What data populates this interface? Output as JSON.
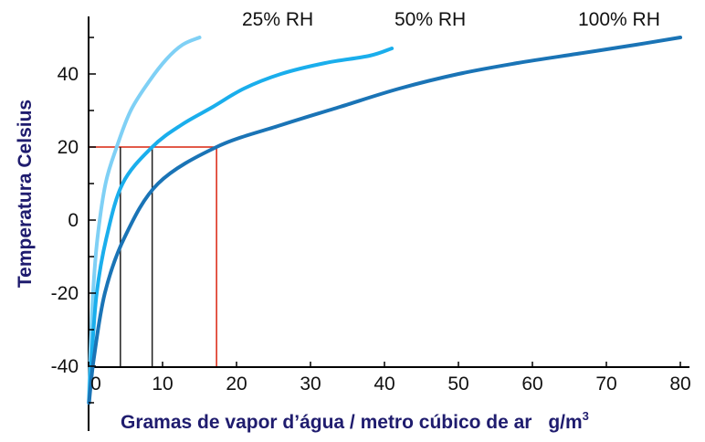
{
  "chart_data": {
    "type": "line",
    "xlabel": "Gramas de vapor d’água / metro cúbico de ar",
    "xunit": "g/m",
    "xunit_sup": "3",
    "ylabel": "Temperatura Celsius",
    "xlim": [
      0,
      80
    ],
    "ylim": [
      -40,
      50
    ],
    "x_ticks": [
      "0",
      "10",
      "20",
      "30",
      "40",
      "50",
      "60",
      "70",
      "80"
    ],
    "y_ticks": [
      "40",
      "20",
      "0",
      "-20",
      "-40"
    ],
    "grid": false,
    "series": [
      {
        "name": "25% RH",
        "color": "#7fd0f5",
        "points": [
          [
            0.03,
            -50
          ],
          [
            0.2,
            -38
          ],
          [
            0.6,
            -20
          ],
          [
            1.2,
            -5
          ],
          [
            2.3,
            10
          ],
          [
            3.8,
            20
          ],
          [
            5.7,
            30
          ],
          [
            8.2,
            38
          ],
          [
            10.5,
            44
          ],
          [
            12.7,
            48
          ],
          [
            15,
            50
          ]
        ]
      },
      {
        "name": "50% RH",
        "color": "#1aaeec",
        "points": [
          [
            0.05,
            -50
          ],
          [
            0.4,
            -38
          ],
          [
            1.1,
            -20
          ],
          [
            2.4,
            -5
          ],
          [
            4.6,
            10
          ],
          [
            8.6,
            20
          ],
          [
            12.5,
            26
          ],
          [
            16.8,
            31
          ],
          [
            21,
            36
          ],
          [
            26,
            40
          ],
          [
            32,
            43
          ],
          [
            38,
            45
          ],
          [
            41,
            47
          ]
        ]
      },
      {
        "name": "100% RH",
        "color": "#1a74b6",
        "points": [
          [
            0.06,
            -50
          ],
          [
            0.7,
            -38
          ],
          [
            2.2,
            -20
          ],
          [
            4.8,
            -5
          ],
          [
            9.4,
            10
          ],
          [
            17.3,
            20
          ],
          [
            26,
            26
          ],
          [
            34,
            31
          ],
          [
            42,
            36
          ],
          [
            50,
            40
          ],
          [
            58,
            43
          ],
          [
            66,
            45.5
          ],
          [
            74,
            48
          ],
          [
            80,
            50
          ]
        ]
      }
    ],
    "reference_lines": [
      {
        "color": "#d9230f",
        "y": 20,
        "x_start": 0,
        "x_end": 17.3
      },
      {
        "color": "#1e1e1e",
        "x": 4.3,
        "y_from": -40,
        "y_to": 20
      },
      {
        "color": "#1e1e1e",
        "x": 8.6,
        "y_from": -40,
        "y_to": 20
      },
      {
        "color": "#d9230f",
        "x": 17.3,
        "y_from": -40,
        "y_to": 20
      }
    ]
  }
}
